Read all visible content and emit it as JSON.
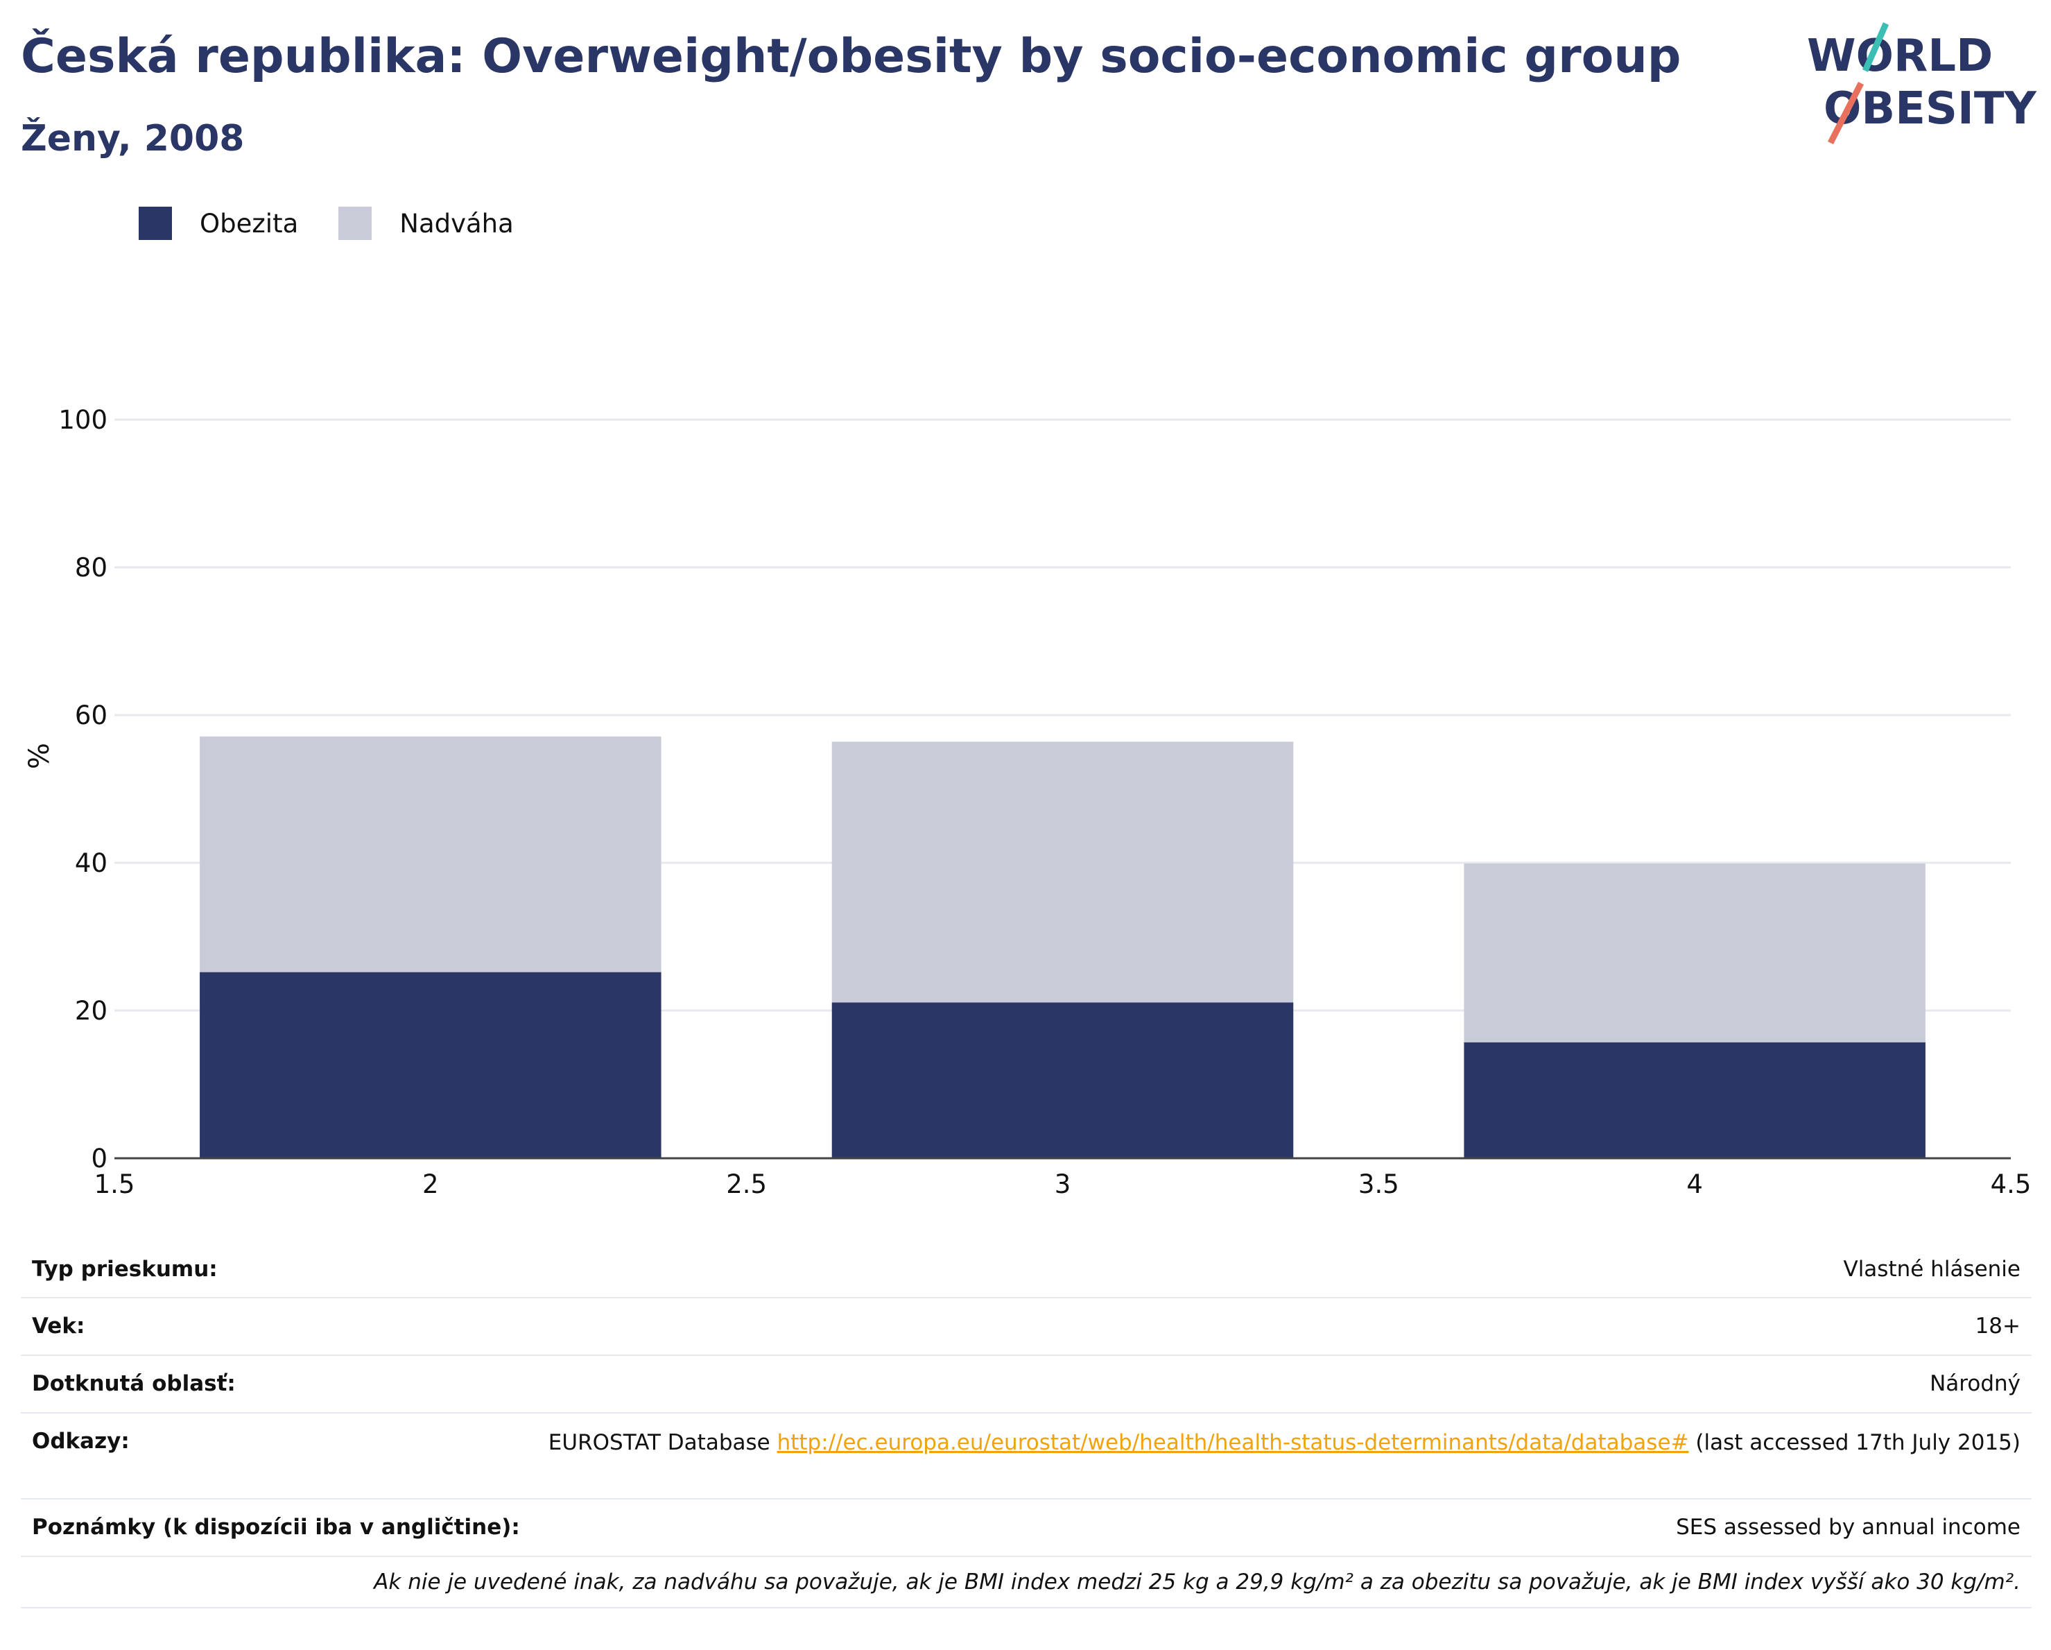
{
  "header": {
    "title": "Česká republika: Overweight/obesity by socio-economic group",
    "subtitle": "Ženy, 2008"
  },
  "logo": {
    "line1": "WORLD",
    "line2": "OBESITY",
    "colors": {
      "text": "#2a3666",
      "slash_teal": "#3bbfb4",
      "slash_coral": "#e8705c"
    }
  },
  "legend": [
    {
      "label": "Obezita",
      "color": "#2a3666"
    },
    {
      "label": "Nadváha",
      "color": "#c9ccd8"
    }
  ],
  "chart_data": {
    "type": "bar",
    "stacked": true,
    "x": [
      2,
      3,
      4
    ],
    "series": [
      {
        "name": "Obezita",
        "color": "#2a3666",
        "values": [
          25.2,
          21.1,
          15.7
        ]
      },
      {
        "name": "Nadváha",
        "color": "#c9ccd8",
        "values": [
          31.9,
          35.3,
          24.2
        ]
      }
    ],
    "ylabel": "%",
    "xlim": [
      1.5,
      4.5
    ],
    "ylim": [
      0,
      100
    ],
    "xticks": [
      "1.5",
      "2",
      "2.5",
      "3",
      "3.5",
      "4",
      "4.5"
    ],
    "yticks": [
      "0",
      "20",
      "40",
      "60",
      "80",
      "100"
    ],
    "grid": true,
    "legend_position": "top-left"
  },
  "meta": {
    "survey_type_label": "Typ prieskumu:",
    "survey_type_value": "Vlastné hlásenie",
    "age_label": "Vek:",
    "age_value": "18+",
    "area_label": "Dotknutá oblasť:",
    "area_value": "Národný",
    "refs_label": "Odkazy:",
    "refs_prefix": "EUROSTAT Database ",
    "refs_link": "http://ec.europa.eu/eurostat/web/health/health-status-determinants/data/database#",
    "refs_suffix": " (last accessed 17th July 2015)",
    "notes_label": "Poznámky (k dispozícii iba v angličtine):",
    "notes_value": "SES assessed by annual income",
    "footnote": "Ak nie je uvedené inak, za nadváhu sa považuje, ak je BMI index medzi 25 kg a 29,9 kg/m² a za obezitu sa považuje, ak je BMI index vyšší ako 30 kg/m²."
  }
}
